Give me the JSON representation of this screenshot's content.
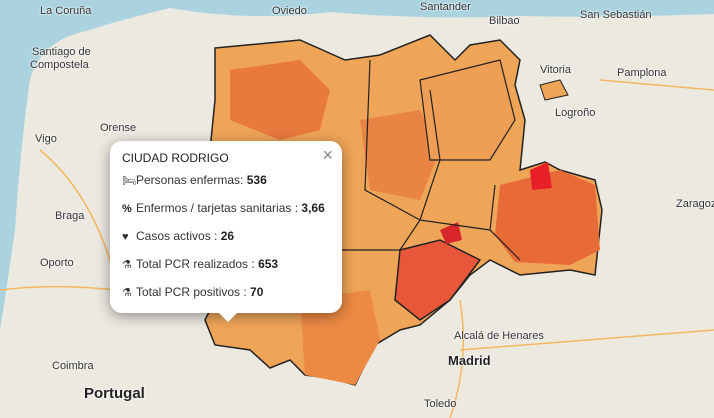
{
  "map": {
    "labels": {
      "la_coruna": "La Coruña",
      "oviedo": "Oviedo",
      "santander": "Santander",
      "bilbao": "Bilbao",
      "san_sebastian": "San Sebastián",
      "santiago": "Santiago de",
      "compostela": "Compostela",
      "vitoria": "Vitoria",
      "pamplona": "Pamplona",
      "logrono": "Logroño",
      "vigo": "Vigo",
      "orense": "Orense",
      "braga": "Braga",
      "oporto": "Oporto",
      "zaragoza": "Zaragoza",
      "alcala": "Alcalá de Henares",
      "madrid": "Madrid",
      "coimbra": "Coimbra",
      "portugal": "Portugal",
      "toledo": "Toledo"
    },
    "colors": {
      "sea": "#aad3df",
      "land": "#ece9e1",
      "low": "#f0b060",
      "mid": "#ec8c45",
      "high": "#e85a2d",
      "max": "#e8202a"
    }
  },
  "popup": {
    "title": "CIUDAD RODRIGO",
    "close_icon": "×",
    "rows": [
      {
        "icon": "bed-icon",
        "label": "Personas enfermas: ",
        "value": "536"
      },
      {
        "icon": "percent-icon",
        "label": "Enfermos / tarjetas sanitarias : ",
        "value": "3,66"
      },
      {
        "icon": "heartbeat-icon",
        "label": "Casos activos : ",
        "value": "26"
      },
      {
        "icon": "flask-icon",
        "label": "Total PCR realizados : ",
        "value": "653"
      },
      {
        "icon": "flask-icon",
        "label": "Total PCR positivos : ",
        "value": "70"
      }
    ]
  }
}
